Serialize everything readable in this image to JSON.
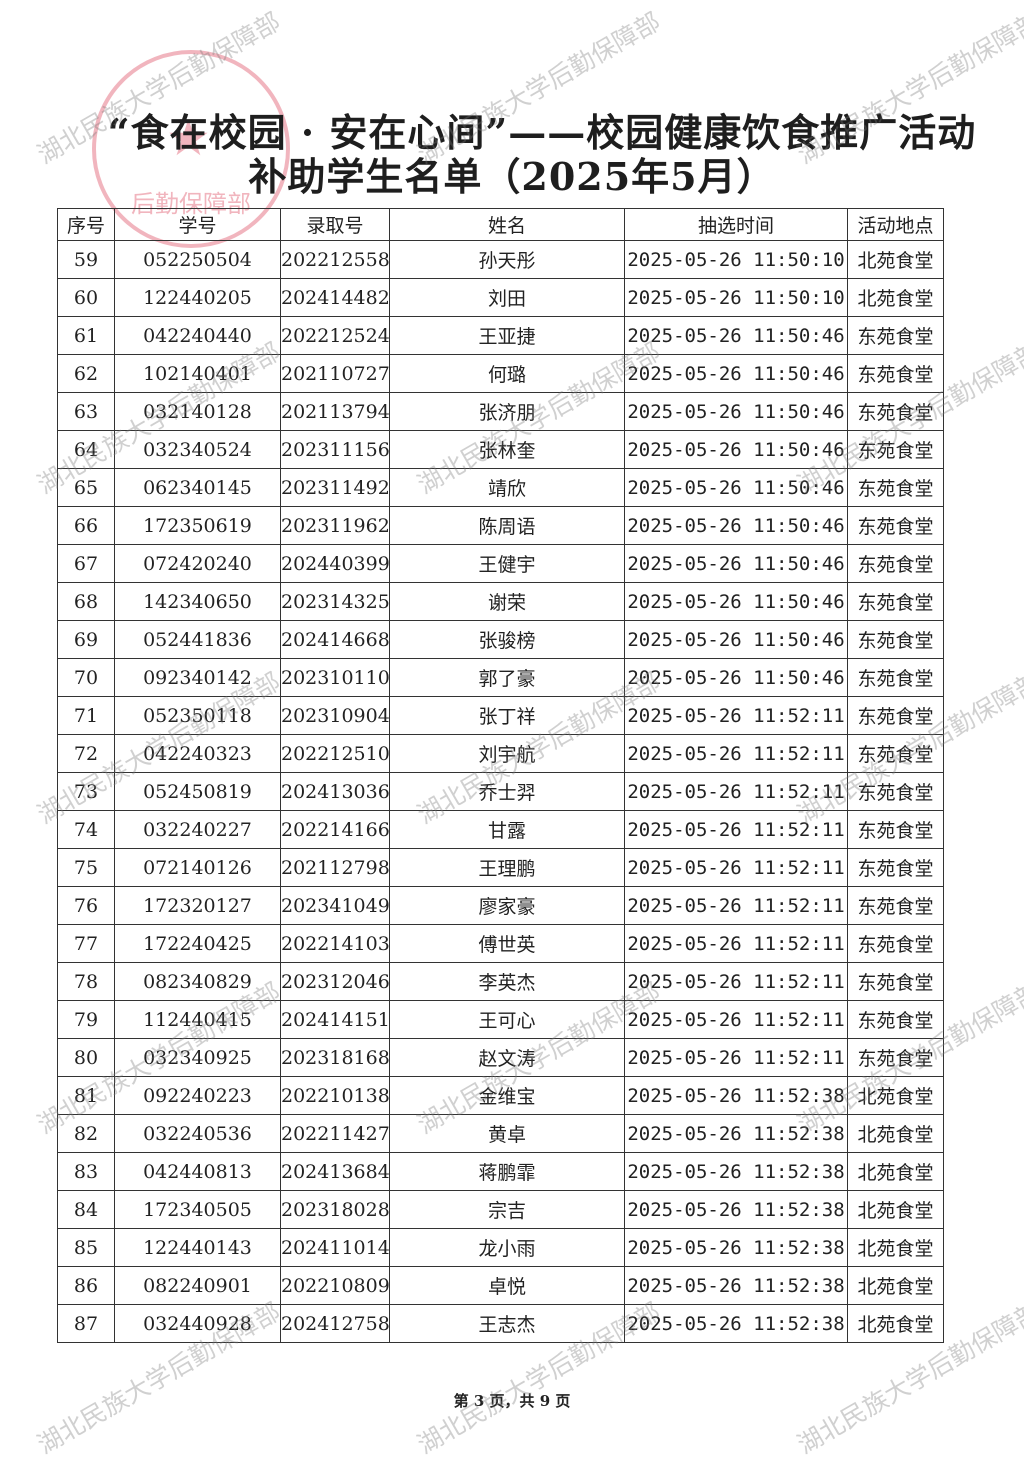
{
  "title_line1": "“食在校园 · 安在心间”——校园健康饮食推广活动",
  "title_line2": "补助学生名单（2025年5月）",
  "columns": [
    "序号",
    "学号",
    "录取号",
    "姓名",
    "抽选时间",
    "活动地点"
  ],
  "rows": [
    [
      "59",
      "052250504",
      "202212558",
      "孙天彤",
      "2025-05-26 11:50:10",
      "北苑食堂"
    ],
    [
      "60",
      "122440205",
      "202414482",
      "刘田",
      "2025-05-26 11:50:10",
      "北苑食堂"
    ],
    [
      "61",
      "042240440",
      "202212524",
      "王亚捷",
      "2025-05-26 11:50:46",
      "东苑食堂"
    ],
    [
      "62",
      "102140401",
      "202110727",
      "何璐",
      "2025-05-26 11:50:46",
      "东苑食堂"
    ],
    [
      "63",
      "032140128",
      "202113794",
      "张济朋",
      "2025-05-26 11:50:46",
      "东苑食堂"
    ],
    [
      "64",
      "032340524",
      "202311156",
      "张林奎",
      "2025-05-26 11:50:46",
      "东苑食堂"
    ],
    [
      "65",
      "062340145",
      "202311492",
      "靖欣",
      "2025-05-26 11:50:46",
      "东苑食堂"
    ],
    [
      "66",
      "172350619",
      "202311962",
      "陈周语",
      "2025-05-26 11:50:46",
      "东苑食堂"
    ],
    [
      "67",
      "072420240",
      "202440399",
      "王健宇",
      "2025-05-26 11:50:46",
      "东苑食堂"
    ],
    [
      "68",
      "142340650",
      "202314325",
      "谢荣",
      "2025-05-26 11:50:46",
      "东苑食堂"
    ],
    [
      "69",
      "052441836",
      "202414668",
      "张骏榜",
      "2025-05-26 11:50:46",
      "东苑食堂"
    ],
    [
      "70",
      "092340142",
      "202310110",
      "郭了豪",
      "2025-05-26 11:50:46",
      "东苑食堂"
    ],
    [
      "71",
      "052350118",
      "202310904",
      "张丁祥",
      "2025-05-26 11:52:11",
      "东苑食堂"
    ],
    [
      "72",
      "042240323",
      "202212510",
      "刘宇航",
      "2025-05-26 11:52:11",
      "东苑食堂"
    ],
    [
      "73",
      "052450819",
      "202413036",
      "乔士羿",
      "2025-05-26 11:52:11",
      "东苑食堂"
    ],
    [
      "74",
      "032240227",
      "202214166",
      "甘露",
      "2025-05-26 11:52:11",
      "东苑食堂"
    ],
    [
      "75",
      "072140126",
      "202112798",
      "王理鹏",
      "2025-05-26 11:52:11",
      "东苑食堂"
    ],
    [
      "76",
      "172320127",
      "202341049",
      "廖家豪",
      "2025-05-26 11:52:11",
      "东苑食堂"
    ],
    [
      "77",
      "172240425",
      "202214103",
      "傅世英",
      "2025-05-26 11:52:11",
      "东苑食堂"
    ],
    [
      "78",
      "082340829",
      "202312046",
      "李英杰",
      "2025-05-26 11:52:11",
      "东苑食堂"
    ],
    [
      "79",
      "112440415",
      "202414151",
      "王可心",
      "2025-05-26 11:52:11",
      "东苑食堂"
    ],
    [
      "80",
      "032340925",
      "202318168",
      "赵文涛",
      "2025-05-26 11:52:11",
      "东苑食堂"
    ],
    [
      "81",
      "092240223",
      "202210138",
      "金维宝",
      "2025-05-26 11:52:38",
      "北苑食堂"
    ],
    [
      "82",
      "032240536",
      "202211427",
      "黄卓",
      "2025-05-26 11:52:38",
      "北苑食堂"
    ],
    [
      "83",
      "042440813",
      "202413684",
      "蒋鹏霏",
      "2025-05-26 11:52:38",
      "北苑食堂"
    ],
    [
      "84",
      "172340505",
      "202318028",
      "宗吉",
      "2025-05-26 11:52:38",
      "北苑食堂"
    ],
    [
      "85",
      "122440143",
      "202411014",
      "龙小雨",
      "2025-05-26 11:52:38",
      "北苑食堂"
    ],
    [
      "86",
      "082240901",
      "202210809",
      "卓悦",
      "2025-05-26 11:52:38",
      "北苑食堂"
    ],
    [
      "87",
      "032440928",
      "202412758",
      "王志杰",
      "2025-05-26 11:52:38",
      "北苑食堂"
    ]
  ],
  "footer": "第 3 页，共 9 页",
  "watermark": "湖北民族大学后勤保障部",
  "stamp_text": "后勤保障部",
  "stamp_color": "#e15a6e"
}
